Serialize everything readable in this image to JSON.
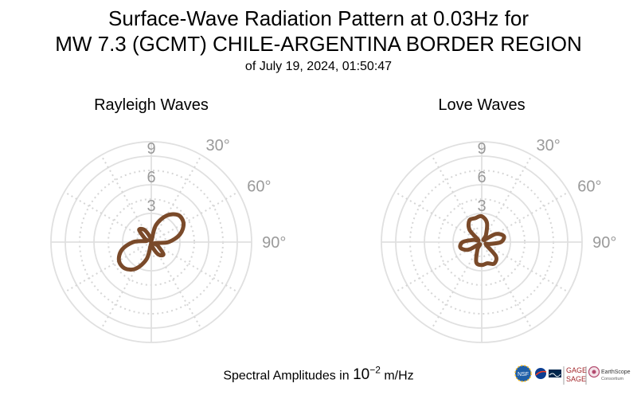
{
  "title_line1": "Surface-Wave Radiation Pattern at 0.03Hz for",
  "title_line2": "MW 7.3 (GCMT) CHILE-ARGENTINA BORDER REGION",
  "title_line3": "of July 19, 2024, 01:50:47",
  "footer": {
    "text_before": "Spectral Amplitudes in ",
    "base": "10",
    "exponent": "−2",
    "text_after": " m/Hz"
  },
  "colors": {
    "pattern": "#7a4a2a",
    "grid_solid": "#e0e0e0",
    "grid_dotted": "#d6d6d6",
    "labels": "#9a9a9a"
  },
  "logos": {
    "names": [
      "nsf-logo",
      "nasa-logo",
      "usgs-logo",
      "gage-sage-logo",
      "earthscope-logo"
    ],
    "gage": "GAGE",
    "sage": "SAGE",
    "earthscope": "EarthScope",
    "consortium": "Consortium"
  },
  "chart_data": [
    {
      "type": "polar",
      "title": "Rayleigh Waves",
      "radial_ticks": [
        3,
        6,
        9
      ],
      "rlim": [
        0,
        10.5
      ],
      "angle_tick_labels": [
        "30°",
        "60°",
        "90°"
      ],
      "grid": true,
      "theta_deg": [
        0,
        15,
        30,
        45,
        60,
        75,
        90,
        105,
        120,
        135,
        150,
        165,
        180,
        195,
        210,
        225,
        240,
        255,
        270,
        285,
        300,
        315,
        330,
        345
      ],
      "r": [
        0.1,
        1.8,
        3.2,
        4.0,
        3.9,
        3.1,
        1.8,
        0.4,
        0.8,
        1.8,
        1.5,
        0.6,
        0.1,
        1.8,
        3.2,
        3.9,
        3.9,
        3.2,
        1.9,
        0.5,
        0.8,
        1.8,
        1.5,
        0.6
      ]
    },
    {
      "type": "polar",
      "title": "Love Waves",
      "radial_ticks": [
        3,
        6,
        9
      ],
      "rlim": [
        0,
        10.5
      ],
      "angle_tick_labels": [
        "30°",
        "60°",
        "90°"
      ],
      "grid": true,
      "theta_deg": [
        0,
        15,
        30,
        45,
        60,
        75,
        90,
        105,
        120,
        135,
        150,
        165,
        180,
        195,
        210,
        225,
        240,
        255,
        270,
        285,
        300,
        315,
        330,
        345
      ],
      "r": [
        2.7,
        2.1,
        0.9,
        0.3,
        1.7,
        2.4,
        2.0,
        0.8,
        0.5,
        2.1,
        2.6,
        2.3,
        2.4,
        2.2,
        0.9,
        0.3,
        1.6,
        2.3,
        2.0,
        0.9,
        0.4,
        1.8,
        2.6,
        2.6
      ]
    }
  ]
}
